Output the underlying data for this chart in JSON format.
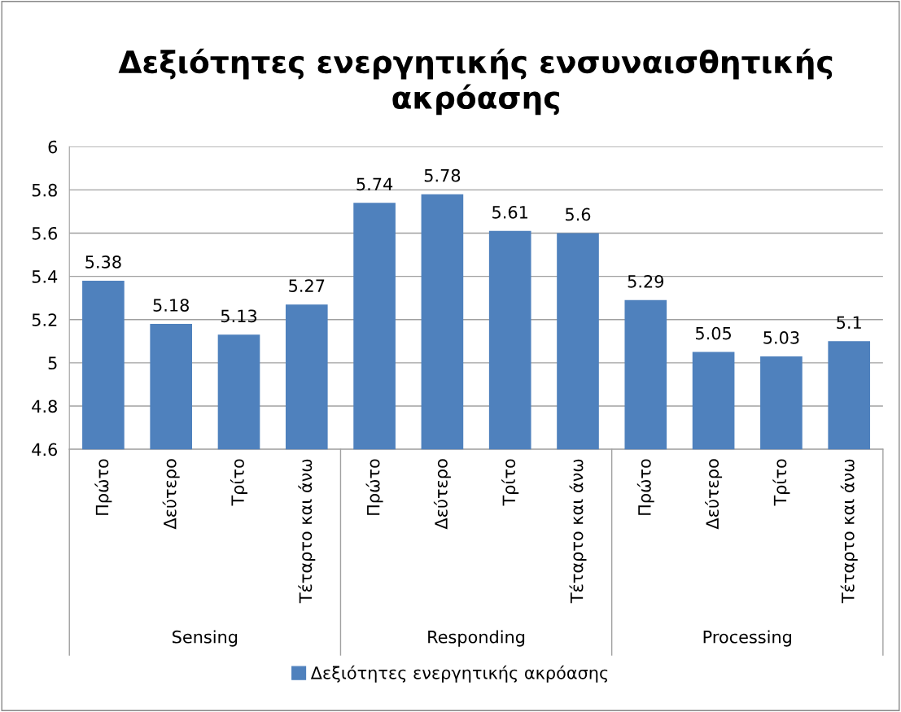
{
  "chart_data": {
    "type": "bar",
    "title": "Δεξιότητες ενεργητικής ενσυναισθητικής ακρόασης",
    "categories": [
      "Πρώτο",
      "Δεύτερο",
      "Τρίτο",
      "Τέταρτο και άνω",
      "Πρώτο",
      "Δεύτερο",
      "Τρίτο",
      "Τέταρτο και άνω",
      "Πρώτο",
      "Δεύτερο",
      "Τρίτο",
      "Τέταρτο και άνω"
    ],
    "series": [
      {
        "name": "Δεξιότητες ενεργητικής ακρόασης",
        "color": "#4f81bd",
        "values": [
          5.38,
          5.18,
          5.13,
          5.27,
          5.74,
          5.78,
          5.61,
          5.6,
          5.29,
          5.05,
          5.03,
          5.1
        ]
      }
    ],
    "annotations": [
      "Sensing",
      "Responding",
      "Processing"
    ],
    "ylim": [
      4.6,
      6
    ],
    "yticks": [
      4.6,
      4.8,
      5,
      5.2,
      5.4,
      5.6,
      5.8,
      6
    ],
    "grid": "y",
    "legend": "bottom",
    "data_labels": true
  }
}
